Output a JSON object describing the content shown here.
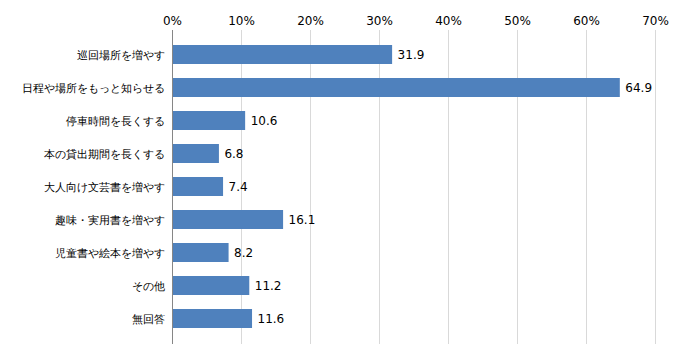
{
  "chart_data": {
    "type": "bar",
    "orientation": "horizontal",
    "categories": [
      "巡回場所を増やす",
      "日程や場所をもっと知らせる",
      "停車時間を長くする",
      "本の貸出期間を長くする",
      "大人向け文芸書を増やす",
      "趣味・実用書を増やす",
      "児童書や絵本を増やす",
      "その他",
      "無回答"
    ],
    "values": [
      31.9,
      64.9,
      10.6,
      6.8,
      7.4,
      16.1,
      8.2,
      11.2,
      11.6
    ],
    "color": "#4f81bd",
    "xlim": [
      0,
      70
    ],
    "xticks": [
      {
        "value": 0,
        "label": "0%"
      },
      {
        "value": 10,
        "label": "10%"
      },
      {
        "value": 20,
        "label": "20%"
      },
      {
        "value": 30,
        "label": "30%"
      },
      {
        "value": 40,
        "label": "40%"
      },
      {
        "value": 50,
        "label": "50%"
      },
      {
        "value": 60,
        "label": "60%"
      },
      {
        "value": 70,
        "label": "70%"
      }
    ],
    "grid": true,
    "data_labels": true
  }
}
